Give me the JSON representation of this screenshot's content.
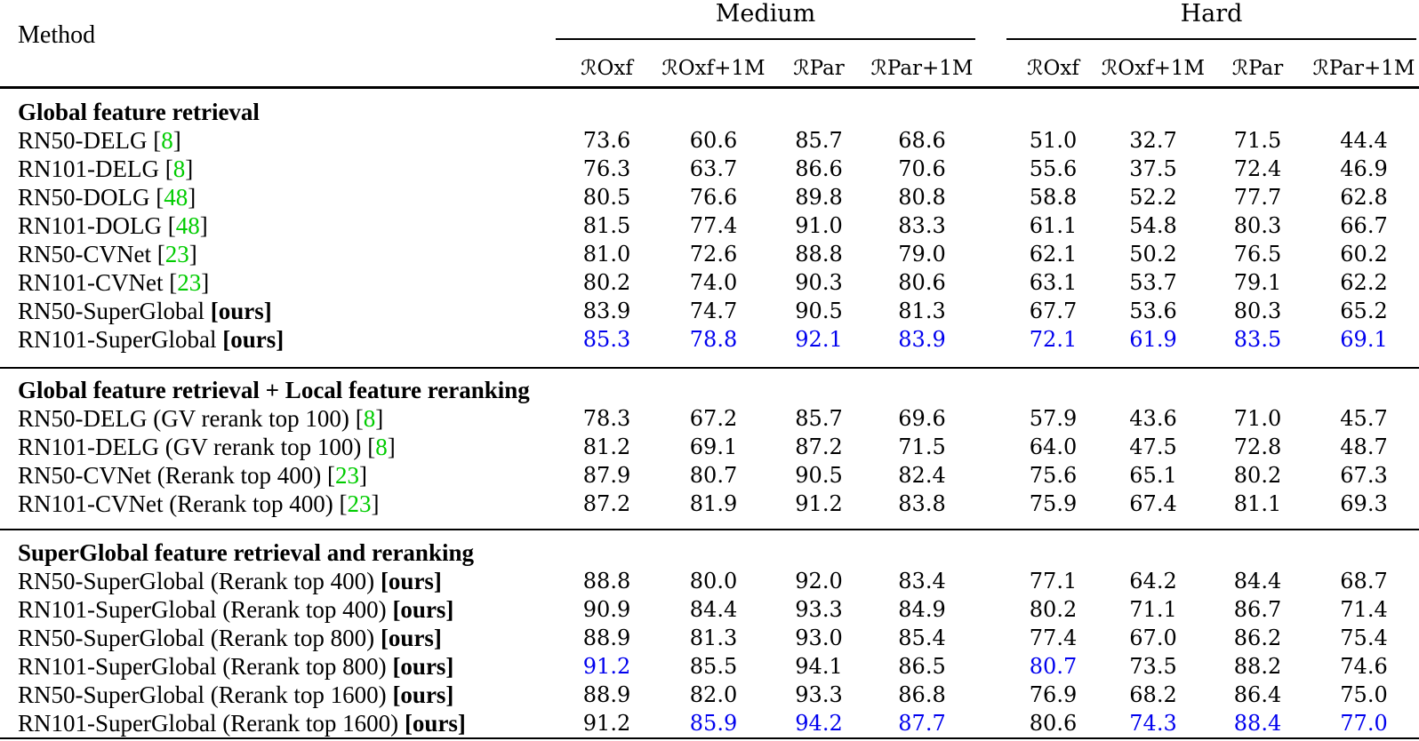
{
  "colors": {
    "citation_green": "#00CC00",
    "highlight_blue": "#0000EE",
    "text": "#000000",
    "background": "#FFFFFF"
  },
  "table": {
    "method_header": "Method",
    "script_r": "ℛ",
    "ours_label": "[ours]",
    "groups": [
      {
        "label": "Medium",
        "subcolumns": [
          "Oxf",
          "Oxf+1M",
          "Par",
          "Par+1M"
        ]
      },
      {
        "label": "Hard",
        "subcolumns": [
          "Oxf",
          "Oxf+1M",
          "Par",
          "Par+1M"
        ]
      }
    ],
    "sections": [
      {
        "title": "Global feature retrieval",
        "rows": [
          {
            "method": "RN50-DELG",
            "cite": "8",
            "values": [
              "73.6",
              "60.6",
              "85.7",
              "68.6",
              "51.0",
              "32.7",
              "71.5",
              "44.4"
            ],
            "blue": []
          },
          {
            "method": "RN101-DELG",
            "cite": "8",
            "values": [
              "76.3",
              "63.7",
              "86.6",
              "70.6",
              "55.6",
              "37.5",
              "72.4",
              "46.9"
            ],
            "blue": []
          },
          {
            "method": "RN50-DOLG",
            "cite": "48",
            "values": [
              "80.5",
              "76.6",
              "89.8",
              "80.8",
              "58.8",
              "52.2",
              "77.7",
              "62.8"
            ],
            "blue": []
          },
          {
            "method": "RN101-DOLG",
            "cite": "48",
            "values": [
              "81.5",
              "77.4",
              "91.0",
              "83.3",
              "61.1",
              "54.8",
              "80.3",
              "66.7"
            ],
            "blue": []
          },
          {
            "method": "RN50-CVNet",
            "cite": "23",
            "values": [
              "81.0",
              "72.6",
              "88.8",
              "79.0",
              "62.1",
              "50.2",
              "76.5",
              "60.2"
            ],
            "blue": []
          },
          {
            "method": "RN101-CVNet",
            "cite": "23",
            "values": [
              "80.2",
              "74.0",
              "90.3",
              "80.6",
              "63.1",
              "53.7",
              "79.1",
              "62.2"
            ],
            "blue": []
          },
          {
            "method": "RN50-SuperGlobal",
            "ours": true,
            "values": [
              "83.9",
              "74.7",
              "90.5",
              "81.3",
              "67.7",
              "53.6",
              "80.3",
              "65.2"
            ],
            "blue": []
          },
          {
            "method": "RN101-SuperGlobal",
            "ours": true,
            "values": [
              "85.3",
              "78.8",
              "92.1",
              "83.9",
              "72.1",
              "61.9",
              "83.5",
              "69.1"
            ],
            "blue": [
              0,
              1,
              2,
              3,
              4,
              5,
              6,
              7
            ]
          }
        ]
      },
      {
        "title": "Global feature retrieval + Local feature reranking",
        "rows": [
          {
            "method": "RN50-DELG (GV rerank top 100)",
            "cite": "8",
            "values": [
              "78.3",
              "67.2",
              "85.7",
              "69.6",
              "57.9",
              "43.6",
              "71.0",
              "45.7"
            ],
            "blue": []
          },
          {
            "method": "RN101-DELG (GV rerank top 100)",
            "cite": "8",
            "values": [
              "81.2",
              "69.1",
              "87.2",
              "71.5",
              "64.0",
              "47.5",
              "72.8",
              "48.7"
            ],
            "blue": []
          },
          {
            "method": "RN50-CVNet (Rerank top 400)",
            "cite": "23",
            "values": [
              "87.9",
              "80.7",
              "90.5",
              "82.4",
              "75.6",
              "65.1",
              "80.2",
              "67.3"
            ],
            "blue": []
          },
          {
            "method": "RN101-CVNet (Rerank top 400)",
            "cite": "23",
            "values": [
              "87.2",
              "81.9",
              "91.2",
              "83.8",
              "75.9",
              "67.4",
              "81.1",
              "69.3"
            ],
            "blue": []
          }
        ]
      },
      {
        "title": "SuperGlobal feature retrieval and reranking",
        "rows": [
          {
            "method": "RN50-SuperGlobal (Rerank top 400)",
            "ours": true,
            "values": [
              "88.8",
              "80.0",
              "92.0",
              "83.4",
              "77.1",
              "64.2",
              "84.4",
              "68.7"
            ],
            "blue": []
          },
          {
            "method": "RN101-SuperGlobal (Rerank top 400)",
            "ours": true,
            "values": [
              "90.9",
              "84.4",
              "93.3",
              "84.9",
              "80.2",
              "71.1",
              "86.7",
              "71.4"
            ],
            "blue": []
          },
          {
            "method": "RN50-SuperGlobal (Rerank top 800)",
            "ours": true,
            "values": [
              "88.9",
              "81.3",
              "93.0",
              "85.4",
              "77.4",
              "67.0",
              "86.2",
              "75.4"
            ],
            "blue": []
          },
          {
            "method": "RN101-SuperGlobal (Rerank top 800)",
            "ours": true,
            "values": [
              "91.2",
              "85.5",
              "94.1",
              "86.5",
              "80.7",
              "73.5",
              "88.2",
              "74.6"
            ],
            "blue": [
              0,
              4
            ]
          },
          {
            "method": "RN50-SuperGlobal (Rerank top 1600)",
            "ours": true,
            "values": [
              "88.9",
              "82.0",
              "93.3",
              "86.8",
              "76.9",
              "68.2",
              "86.4",
              "75.0"
            ],
            "blue": []
          },
          {
            "method": "RN101-SuperGlobal (Rerank top 1600)",
            "ours": true,
            "values": [
              "91.2",
              "85.9",
              "94.2",
              "87.7",
              "80.6",
              "74.3",
              "88.4",
              "77.0"
            ],
            "blue": [
              1,
              2,
              3,
              5,
              6,
              7
            ]
          }
        ]
      }
    ]
  }
}
